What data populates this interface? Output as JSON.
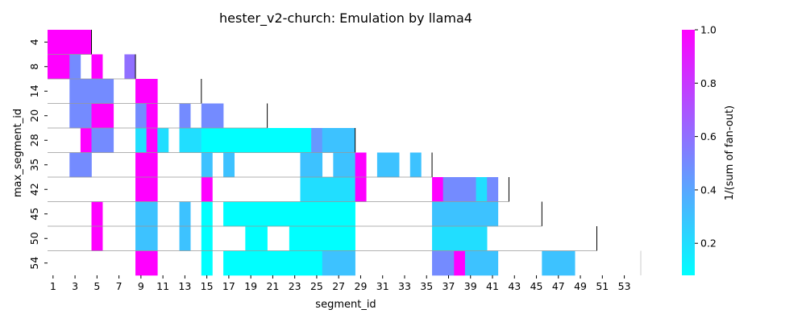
{
  "chart_data": {
    "type": "heatmap",
    "title": "hester_v2-church: Emulation by llama4",
    "xlabel": "segment_id",
    "ylabel": "max_segment_id",
    "colorbar_label": "1/(sum of fan-out)",
    "colormap": "cool",
    "color_range": [
      0.08,
      1.0
    ],
    "colorbar_ticks": [
      "0.2",
      "0.4",
      "0.6",
      "0.8",
      "1.0"
    ],
    "x_range": [
      1,
      54
    ],
    "x_tick_labels": [
      "1",
      "3",
      "5",
      "7",
      "9",
      "11",
      "13",
      "15",
      "17",
      "19",
      "21",
      "23",
      "25",
      "27",
      "29",
      "31",
      "33",
      "35",
      "37",
      "39",
      "41",
      "43",
      "45",
      "47",
      "49",
      "51",
      "53"
    ],
    "y_tick_labels": [
      "4",
      "8",
      "14",
      "20",
      "28",
      "35",
      "42",
      "45",
      "50",
      "54"
    ],
    "rows": [
      {
        "max_segment_id": 4,
        "cells": [
          [
            1,
            4,
            1.0
          ]
        ]
      },
      {
        "max_segment_id": 8,
        "cells": [
          [
            1,
            2,
            1.0
          ],
          [
            3,
            3,
            0.5
          ],
          [
            5,
            5,
            1.0
          ],
          [
            8,
            8,
            0.6
          ]
        ]
      },
      {
        "max_segment_id": 14,
        "cells": [
          [
            3,
            6,
            0.5
          ],
          [
            9,
            10,
            1.0
          ]
        ]
      },
      {
        "max_segment_id": 20,
        "cells": [
          [
            3,
            4,
            0.5
          ],
          [
            5,
            6,
            1.0
          ],
          [
            9,
            9,
            0.5
          ],
          [
            10,
            10,
            1.0
          ],
          [
            13,
            13,
            0.5
          ],
          [
            15,
            16,
            0.5
          ]
        ]
      },
      {
        "max_segment_id": 28,
        "cells": [
          [
            4,
            4,
            1.0
          ],
          [
            5,
            6,
            0.5
          ],
          [
            9,
            9,
            0.2
          ],
          [
            10,
            10,
            1.0
          ],
          [
            11,
            11,
            0.2
          ],
          [
            13,
            14,
            0.2
          ],
          [
            15,
            24,
            0.08
          ],
          [
            25,
            25,
            0.45
          ],
          [
            26,
            28,
            0.3
          ]
        ]
      },
      {
        "max_segment_id": 35,
        "cells": [
          [
            3,
            4,
            0.5
          ],
          [
            9,
            10,
            1.0
          ],
          [
            15,
            15,
            0.3
          ],
          [
            17,
            17,
            0.3
          ],
          [
            24,
            25,
            0.3
          ],
          [
            27,
            28,
            0.3
          ],
          [
            29,
            29,
            1.0
          ],
          [
            31,
            32,
            0.3
          ],
          [
            34,
            34,
            0.3
          ]
        ]
      },
      {
        "max_segment_id": 42,
        "cells": [
          [
            9,
            10,
            1.0
          ],
          [
            15,
            15,
            1.0
          ],
          [
            24,
            28,
            0.2
          ],
          [
            29,
            29,
            1.0
          ],
          [
            36,
            36,
            1.0
          ],
          [
            37,
            39,
            0.5
          ],
          [
            40,
            40,
            0.2
          ],
          [
            41,
            41,
            0.5
          ]
        ]
      },
      {
        "max_segment_id": 45,
        "cells": [
          [
            5,
            5,
            1.0
          ],
          [
            9,
            10,
            0.3
          ],
          [
            13,
            13,
            0.3
          ],
          [
            15,
            15,
            0.08
          ],
          [
            17,
            28,
            0.08
          ],
          [
            36,
            41,
            0.3
          ]
        ]
      },
      {
        "max_segment_id": 50,
        "cells": [
          [
            5,
            5,
            1.0
          ],
          [
            9,
            10,
            0.3
          ],
          [
            13,
            13,
            0.3
          ],
          [
            15,
            15,
            0.08
          ],
          [
            19,
            20,
            0.08
          ],
          [
            23,
            28,
            0.08
          ],
          [
            36,
            40,
            0.2
          ]
        ]
      },
      {
        "max_segment_id": 54,
        "cells": [
          [
            9,
            10,
            1.0
          ],
          [
            15,
            15,
            0.08
          ],
          [
            17,
            25,
            0.08
          ],
          [
            26,
            28,
            0.3
          ],
          [
            36,
            37,
            0.5
          ],
          [
            38,
            38,
            1.0
          ],
          [
            39,
            41,
            0.3
          ],
          [
            46,
            48,
            0.3
          ]
        ]
      }
    ]
  }
}
